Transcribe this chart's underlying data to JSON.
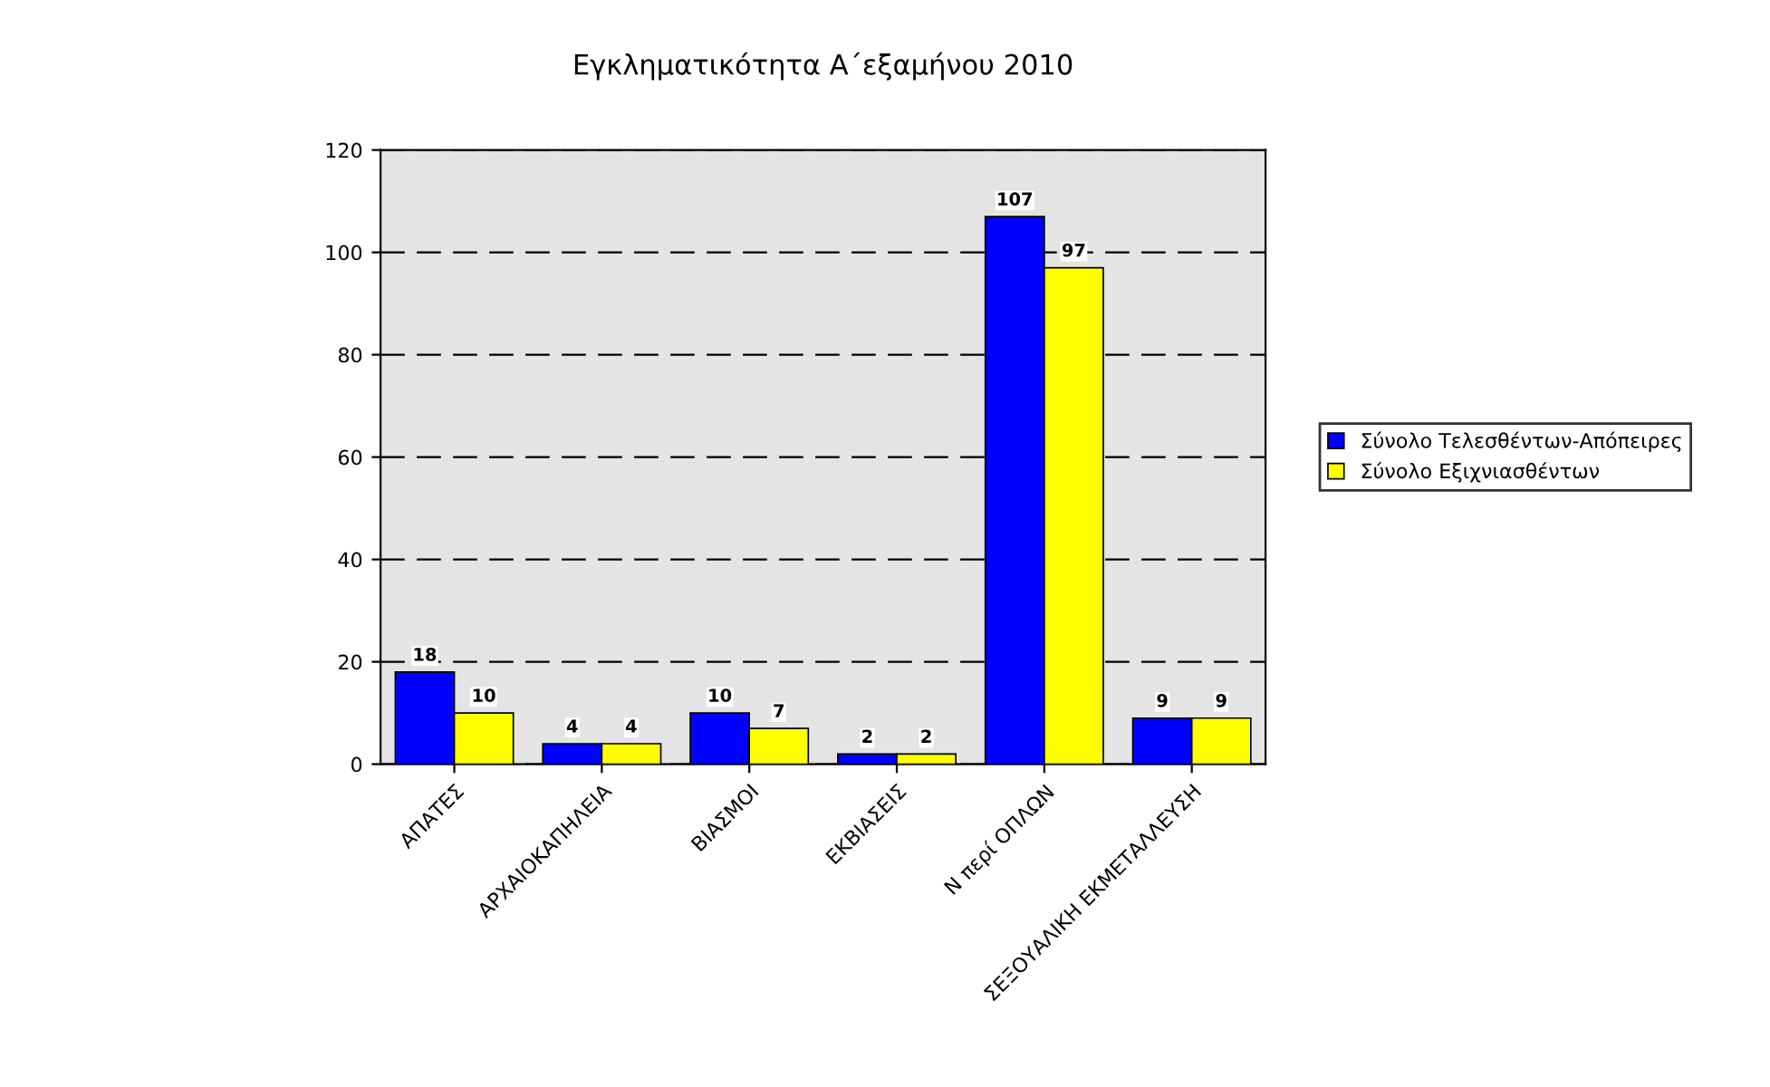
{
  "chart_data": {
    "type": "bar",
    "title": "Εγκληματικότητα Α΄εξαμήνου 2010",
    "categories": [
      "ΑΠΑΤΕΣ",
      "ΑΡΧΑΙΟΚΑΠΗΛΕΙΑ",
      "ΒΙΑΣΜΟΙ",
      "ΕΚΒΙΑΣΕΙΣ",
      "Ν περί ΟΠΛΩΝ",
      "ΣΕΞΟΥΑΛΙΚΗ ΕΚΜΕΤΑΛΛΕΥΣΗ"
    ],
    "series": [
      {
        "name": "Σύνολο Τελεσθέντων-Απόπειρες",
        "color": "#0000ff",
        "values": [
          18,
          4,
          10,
          2,
          107,
          9
        ]
      },
      {
        "name": "Σύνολο Εξιχνιασθέντων",
        "color": "#ffff00",
        "values": [
          10,
          4,
          7,
          2,
          97,
          9
        ]
      }
    ],
    "ylim": [
      0,
      120
    ],
    "yticks": [
      0,
      20,
      40,
      60,
      80,
      100,
      120
    ],
    "grid": "y",
    "line_style": "dashed",
    "data_labels": true,
    "legend": "right"
  }
}
